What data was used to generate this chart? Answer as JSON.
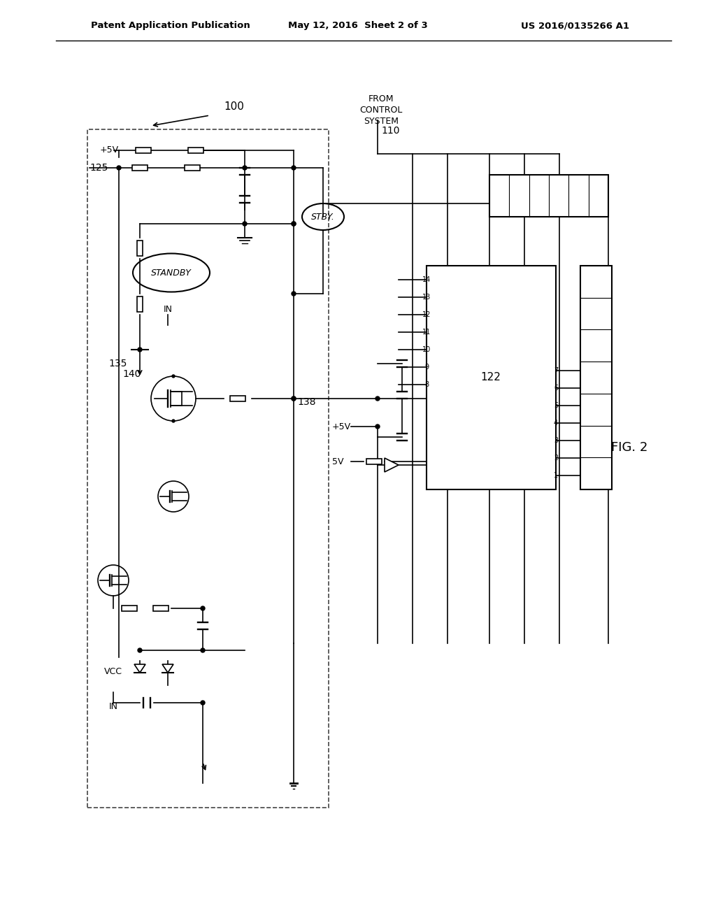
{
  "title_left": "Patent Application Publication",
  "title_center": "May 12, 2016  Sheet 2 of 3",
  "title_right": "US 2016/0135266 A1",
  "fig_label": "FIG. 2",
  "ref_100": "100",
  "ref_110": "110",
  "ref_122": "122",
  "ref_125": "125",
  "ref_135": "135",
  "ref_138": "138",
  "ref_140": "140",
  "label_standby": "STANDBY",
  "label_stby": "STBY.",
  "label_from_control": "FROM\nCONTROL\nSYSTEM",
  "label_5v": "+5V",
  "label_5v2": "+5V",
  "label_5v3": "5V",
  "label_vcc": "VCC",
  "label_in1": "IN",
  "label_in2": "IN",
  "bg_color": "#ffffff",
  "line_color": "#000000",
  "text_color": "#000000"
}
